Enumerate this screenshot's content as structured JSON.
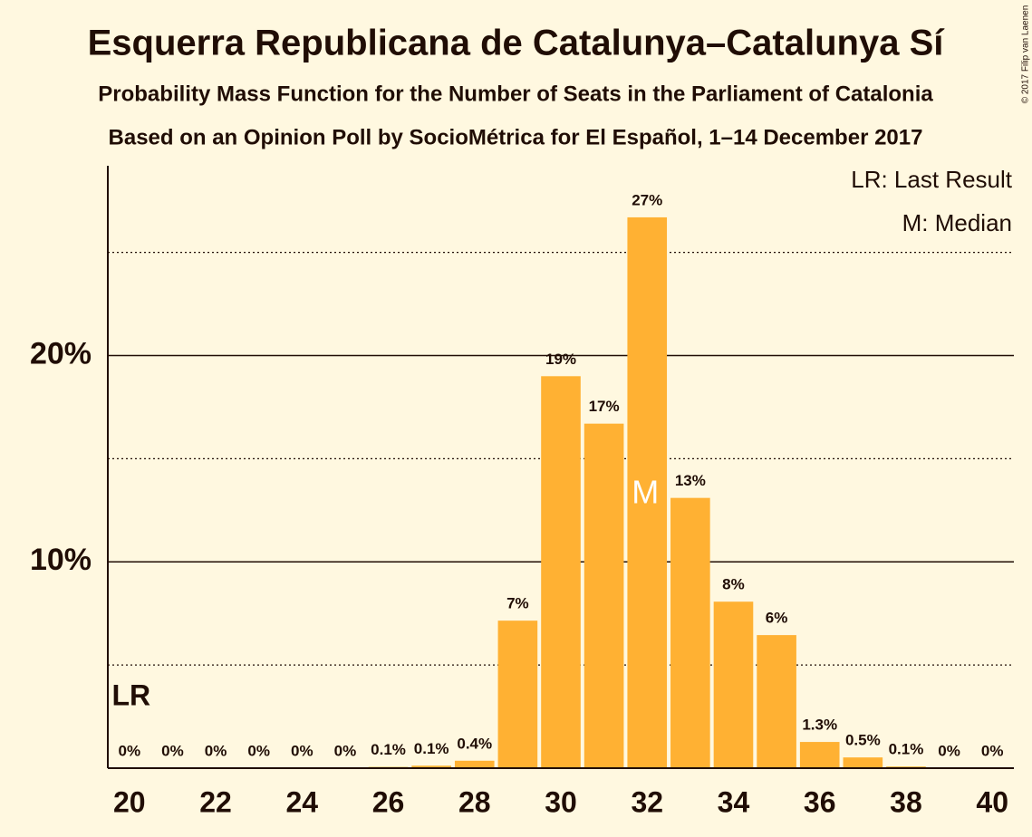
{
  "chart_data": {
    "type": "bar",
    "title": "Esquerra Republicana de Catalunya–Catalunya Sí",
    "subtitle": "Probability Mass Function for the Number of Seats in the Parliament of Catalonia",
    "subtitle2": "Based on an Opinion Poll by SocioMétrica for El Español, 1–14 December 2017",
    "copyright": "© 2017 Filip van Laenen",
    "x": [
      20,
      21,
      22,
      23,
      24,
      25,
      26,
      27,
      28,
      29,
      30,
      31,
      32,
      33,
      34,
      35,
      36,
      37,
      38,
      39,
      40
    ],
    "values": [
      0,
      0,
      0,
      0,
      0,
      0,
      0.06,
      0.12,
      0.36,
      7.15,
      19.0,
      16.7,
      26.7,
      13.1,
      8.07,
      6.45,
      1.27,
      0.52,
      0.08,
      0,
      0
    ],
    "value_labels": [
      "0%",
      "0%",
      "0%",
      "0%",
      "0%",
      "0%",
      "0.1%",
      "0.1%",
      "0.4%",
      "7%",
      "19%",
      "17%",
      "27%",
      "13%",
      "8%",
      "6%",
      "1.3%",
      "0.5%",
      "0.1%",
      "0%",
      "0%"
    ],
    "color": "#ffb133",
    "xlim": [
      19.5,
      40.5
    ],
    "xticks": [
      20,
      22,
      24,
      26,
      28,
      30,
      32,
      34,
      36,
      38,
      40
    ],
    "ylim": [
      0,
      29.2
    ],
    "yticks": [
      {
        "value": 10,
        "label": "10%"
      },
      {
        "value": 20,
        "label": "20%"
      }
    ],
    "minor_yticks": [
      5,
      15,
      25
    ],
    "grid": true,
    "annotations": [
      {
        "text": "LR",
        "x": 20
      },
      {
        "text": "M",
        "x": 32
      }
    ],
    "legend": [
      "LR: Last Result",
      "M: Median"
    ]
  }
}
